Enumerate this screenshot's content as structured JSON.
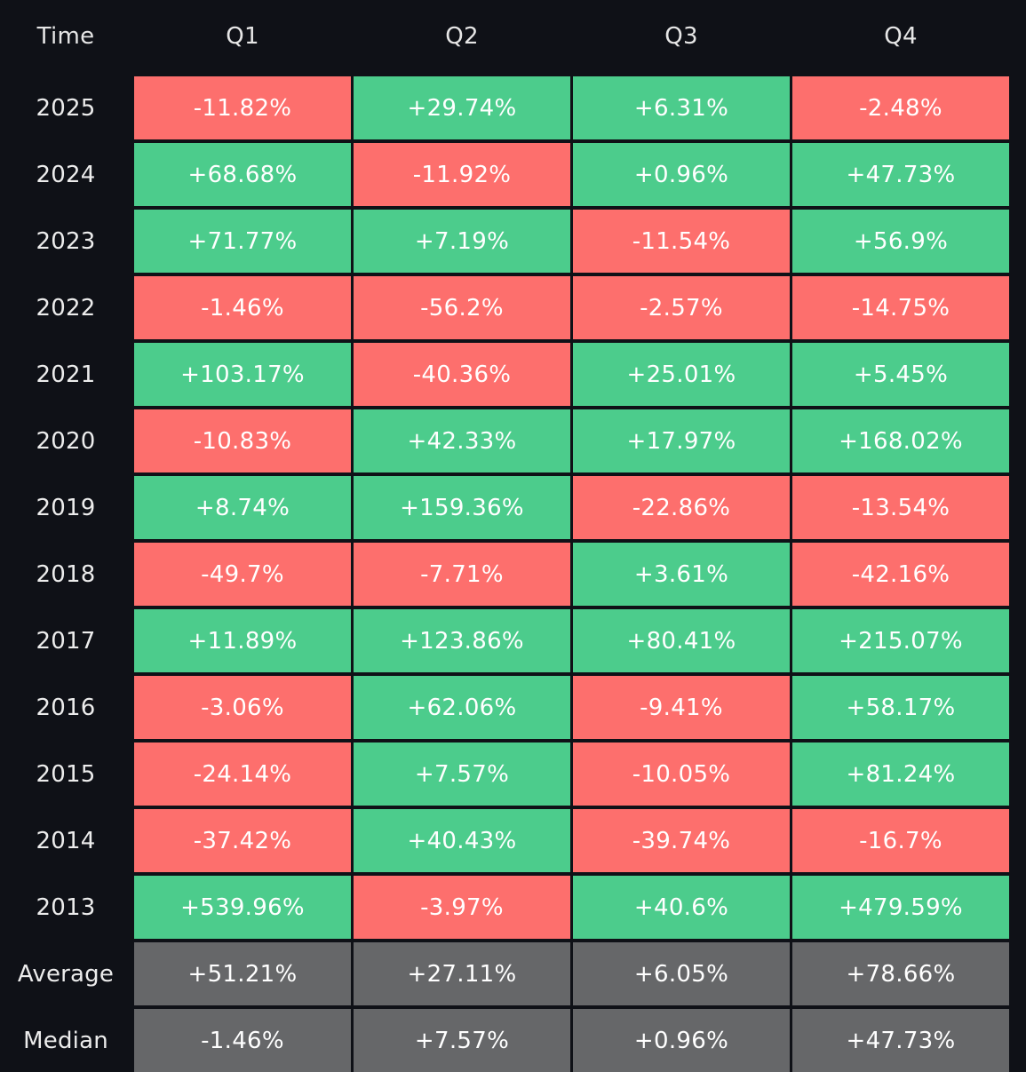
{
  "chart_data": {
    "type": "table",
    "columns": [
      "Time",
      "Q1",
      "Q2",
      "Q3",
      "Q4"
    ],
    "rows": [
      {
        "label": "2025",
        "values": [
          "-11.82%",
          "+29.74%",
          "+6.31%",
          "-2.48%"
        ]
      },
      {
        "label": "2024",
        "values": [
          "+68.68%",
          "-11.92%",
          "+0.96%",
          "+47.73%"
        ]
      },
      {
        "label": "2023",
        "values": [
          "+71.77%",
          "+7.19%",
          "-11.54%",
          "+56.9%"
        ]
      },
      {
        "label": "2022",
        "values": [
          "-1.46%",
          "-56.2%",
          "-2.57%",
          "-14.75%"
        ]
      },
      {
        "label": "2021",
        "values": [
          "+103.17%",
          "-40.36%",
          "+25.01%",
          "+5.45%"
        ]
      },
      {
        "label": "2020",
        "values": [
          "-10.83%",
          "+42.33%",
          "+17.97%",
          "+168.02%"
        ]
      },
      {
        "label": "2019",
        "values": [
          "+8.74%",
          "+159.36%",
          "-22.86%",
          "-13.54%"
        ]
      },
      {
        "label": "2018",
        "values": [
          "-49.7%",
          "-7.71%",
          "+3.61%",
          "-42.16%"
        ]
      },
      {
        "label": "2017",
        "values": [
          "+11.89%",
          "+123.86%",
          "+80.41%",
          "+215.07%"
        ]
      },
      {
        "label": "2016",
        "values": [
          "-3.06%",
          "+62.06%",
          "-9.41%",
          "+58.17%"
        ]
      },
      {
        "label": "2015",
        "values": [
          "-24.14%",
          "+7.57%",
          "-10.05%",
          "+81.24%"
        ]
      },
      {
        "label": "2014",
        "values": [
          "-37.42%",
          "+40.43%",
          "-39.74%",
          "-16.7%"
        ]
      },
      {
        "label": "2013",
        "values": [
          "+539.96%",
          "-3.97%",
          "+40.6%",
          "+479.59%"
        ]
      }
    ],
    "summary": [
      {
        "label": "Average",
        "values": [
          "+51.21%",
          "+27.11%",
          "+6.05%",
          "+78.66%"
        ]
      },
      {
        "label": "Median",
        "values": [
          "-1.46%",
          "+7.57%",
          "+0.96%",
          "+47.73%"
        ]
      }
    ],
    "colors": {
      "background": "#0f1117",
      "positive": "#4ccc8c",
      "negative": "#fd6f6d",
      "summary": "#666769",
      "header_text": "#e6e6e6",
      "cell_text": "#ffffff"
    }
  }
}
